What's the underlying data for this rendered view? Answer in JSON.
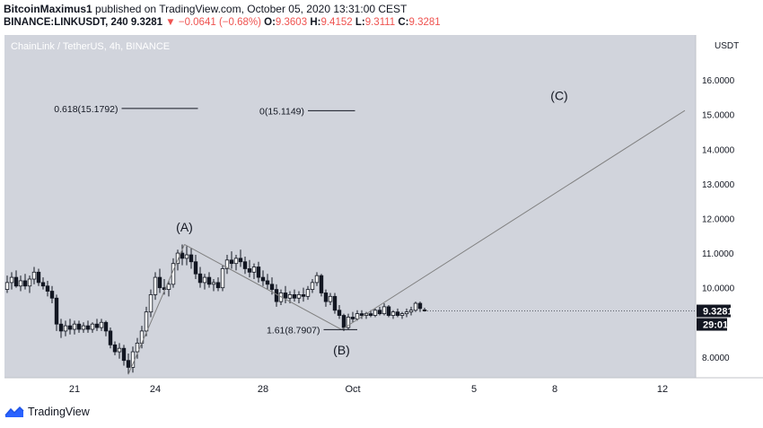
{
  "header": {
    "author": "BitcoinMaximus1",
    "published_text": "published on TradingView.com, October 05, 2020 13:31:00 CEST",
    "symbol": "BINANCE:LINKUSDT, 240",
    "last": "9.3281",
    "change": "−0.0641 (−0.68%)",
    "open_label": "O:",
    "open": "9.3603",
    "high_label": "H:",
    "high": "9.4152",
    "low_label": "L:",
    "low": "9.3111",
    "close_label": "C:",
    "close": "9.3281"
  },
  "chart_data": {
    "type": "candlestick",
    "title": "ChainLink / TetherUS, 4h, BINANCE",
    "y_unit": "USDT",
    "ylim": [
      7.4,
      17.3
    ],
    "y_ticks": [
      "16.0000",
      "15.0000",
      "14.0000",
      "13.0000",
      "12.0000",
      "11.0000",
      "10.0000",
      "8.0000"
    ],
    "y_tick_values": [
      16,
      15,
      14,
      13,
      12,
      11,
      10,
      8
    ],
    "x_ticks": [
      {
        "label": "21",
        "bar": 15
      },
      {
        "label": "24",
        "bar": 33
      },
      {
        "label": "28",
        "bar": 57
      },
      {
        "label": "Oct",
        "bar": 77
      },
      {
        "label": "5",
        "bar": 104
      },
      {
        "label": "8",
        "bar": 122
      },
      {
        "label": "12",
        "bar": 146
      }
    ],
    "current_price_label": "9.3281",
    "countdown_label": "29:01",
    "colors": {
      "background": "#d1d4dc",
      "up": "#ffffff",
      "down": "#131722",
      "line": "#808080",
      "price_tag": "#131722"
    },
    "candles": [
      {
        "o": 9.95,
        "h": 10.35,
        "l": 9.85,
        "c": 10.15
      },
      {
        "o": 10.15,
        "h": 10.45,
        "l": 9.95,
        "c": 10.3
      },
      {
        "o": 10.3,
        "h": 10.5,
        "l": 10.0,
        "c": 10.05
      },
      {
        "o": 10.05,
        "h": 10.35,
        "l": 9.9,
        "c": 10.2
      },
      {
        "o": 10.2,
        "h": 10.4,
        "l": 9.95,
        "c": 10.05
      },
      {
        "o": 10.05,
        "h": 10.35,
        "l": 9.85,
        "c": 10.25
      },
      {
        "o": 10.25,
        "h": 10.6,
        "l": 10.1,
        "c": 10.45
      },
      {
        "o": 10.45,
        "h": 10.55,
        "l": 10.05,
        "c": 10.15
      },
      {
        "o": 10.15,
        "h": 10.3,
        "l": 9.95,
        "c": 10.05
      },
      {
        "o": 10.05,
        "h": 10.2,
        "l": 9.75,
        "c": 9.9
      },
      {
        "o": 9.9,
        "h": 10.05,
        "l": 9.55,
        "c": 9.7
      },
      {
        "o": 9.7,
        "h": 9.8,
        "l": 8.75,
        "c": 8.95
      },
      {
        "o": 8.95,
        "h": 9.1,
        "l": 8.55,
        "c": 8.75
      },
      {
        "o": 8.75,
        "h": 9.05,
        "l": 8.6,
        "c": 8.9
      },
      {
        "o": 8.9,
        "h": 9.1,
        "l": 8.65,
        "c": 8.8
      },
      {
        "o": 8.8,
        "h": 9.05,
        "l": 8.65,
        "c": 8.95
      },
      {
        "o": 8.95,
        "h": 9.05,
        "l": 8.7,
        "c": 8.8
      },
      {
        "o": 8.8,
        "h": 9.0,
        "l": 8.7,
        "c": 8.9
      },
      {
        "o": 8.9,
        "h": 9.05,
        "l": 8.7,
        "c": 8.8
      },
      {
        "o": 8.8,
        "h": 9.0,
        "l": 8.7,
        "c": 8.95
      },
      {
        "o": 8.95,
        "h": 9.1,
        "l": 8.75,
        "c": 8.85
      },
      {
        "o": 8.85,
        "h": 9.1,
        "l": 8.75,
        "c": 9.0
      },
      {
        "o": 9.0,
        "h": 9.05,
        "l": 8.6,
        "c": 8.75
      },
      {
        "o": 8.75,
        "h": 8.85,
        "l": 8.25,
        "c": 8.35
      },
      {
        "o": 8.35,
        "h": 8.45,
        "l": 8.05,
        "c": 8.15
      },
      {
        "o": 8.15,
        "h": 8.4,
        "l": 7.95,
        "c": 8.25
      },
      {
        "o": 8.25,
        "h": 8.35,
        "l": 7.75,
        "c": 7.9
      },
      {
        "o": 7.9,
        "h": 8.1,
        "l": 7.5,
        "c": 7.7
      },
      {
        "o": 7.7,
        "h": 8.3,
        "l": 7.55,
        "c": 8.15
      },
      {
        "o": 8.15,
        "h": 8.55,
        "l": 7.95,
        "c": 8.4
      },
      {
        "o": 8.4,
        "h": 8.9,
        "l": 8.25,
        "c": 8.75
      },
      {
        "o": 8.75,
        "h": 9.45,
        "l": 8.6,
        "c": 9.3
      },
      {
        "o": 9.3,
        "h": 9.95,
        "l": 9.15,
        "c": 9.8
      },
      {
        "o": 9.8,
        "h": 10.45,
        "l": 9.65,
        "c": 10.3
      },
      {
        "o": 10.3,
        "h": 10.55,
        "l": 9.85,
        "c": 10.0
      },
      {
        "o": 10.0,
        "h": 10.25,
        "l": 9.8,
        "c": 9.95
      },
      {
        "o": 9.95,
        "h": 10.2,
        "l": 9.75,
        "c": 10.1
      },
      {
        "o": 10.1,
        "h": 10.85,
        "l": 10.0,
        "c": 10.7
      },
      {
        "o": 10.7,
        "h": 11.1,
        "l": 10.5,
        "c": 11.0
      },
      {
        "o": 11.0,
        "h": 11.25,
        "l": 10.65,
        "c": 10.85
      },
      {
        "o": 10.85,
        "h": 11.2,
        "l": 10.65,
        "c": 10.95
      },
      {
        "o": 10.95,
        "h": 11.15,
        "l": 10.55,
        "c": 10.75
      },
      {
        "o": 10.75,
        "h": 10.95,
        "l": 10.25,
        "c": 10.4
      },
      {
        "o": 10.4,
        "h": 10.6,
        "l": 10.0,
        "c": 10.15
      },
      {
        "o": 10.15,
        "h": 10.4,
        "l": 9.95,
        "c": 10.3
      },
      {
        "o": 10.3,
        "h": 10.45,
        "l": 10.0,
        "c": 10.1
      },
      {
        "o": 10.1,
        "h": 10.25,
        "l": 9.9,
        "c": 10.15
      },
      {
        "o": 10.15,
        "h": 10.3,
        "l": 9.9,
        "c": 10.0
      },
      {
        "o": 10.0,
        "h": 10.65,
        "l": 9.9,
        "c": 10.55
      },
      {
        "o": 10.55,
        "h": 10.95,
        "l": 10.4,
        "c": 10.8
      },
      {
        "o": 10.8,
        "h": 11.05,
        "l": 10.55,
        "c": 10.7
      },
      {
        "o": 10.7,
        "h": 10.95,
        "l": 10.5,
        "c": 10.85
      },
      {
        "o": 10.85,
        "h": 11.1,
        "l": 10.6,
        "c": 10.75
      },
      {
        "o": 10.75,
        "h": 10.9,
        "l": 10.4,
        "c": 10.55
      },
      {
        "o": 10.55,
        "h": 10.8,
        "l": 10.3,
        "c": 10.45
      },
      {
        "o": 10.45,
        "h": 10.7,
        "l": 10.25,
        "c": 10.6
      },
      {
        "o": 10.6,
        "h": 10.75,
        "l": 10.15,
        "c": 10.3
      },
      {
        "o": 10.3,
        "h": 10.5,
        "l": 10.05,
        "c": 10.2
      },
      {
        "o": 10.2,
        "h": 10.4,
        "l": 9.95,
        "c": 10.1
      },
      {
        "o": 10.1,
        "h": 10.3,
        "l": 9.8,
        "c": 9.95
      },
      {
        "o": 9.95,
        "h": 10.1,
        "l": 9.45,
        "c": 9.6
      },
      {
        "o": 9.6,
        "h": 9.95,
        "l": 9.5,
        "c": 9.85
      },
      {
        "o": 9.85,
        "h": 10.05,
        "l": 9.55,
        "c": 9.7
      },
      {
        "o": 9.7,
        "h": 9.9,
        "l": 9.55,
        "c": 9.8
      },
      {
        "o": 9.8,
        "h": 9.95,
        "l": 9.6,
        "c": 9.7
      },
      {
        "o": 9.7,
        "h": 9.9,
        "l": 9.55,
        "c": 9.8
      },
      {
        "o": 9.8,
        "h": 10.0,
        "l": 9.6,
        "c": 9.75
      },
      {
        "o": 9.75,
        "h": 10.05,
        "l": 9.65,
        "c": 9.95
      },
      {
        "o": 9.95,
        "h": 10.25,
        "l": 9.85,
        "c": 10.15
      },
      {
        "o": 10.15,
        "h": 10.45,
        "l": 10.05,
        "c": 10.35
      },
      {
        "o": 10.35,
        "h": 10.4,
        "l": 9.75,
        "c": 9.85
      },
      {
        "o": 9.85,
        "h": 9.95,
        "l": 9.45,
        "c": 9.6
      },
      {
        "o": 9.6,
        "h": 9.85,
        "l": 9.5,
        "c": 9.75
      },
      {
        "o": 9.75,
        "h": 9.85,
        "l": 9.25,
        "c": 9.35
      },
      {
        "o": 9.35,
        "h": 9.5,
        "l": 9.1,
        "c": 9.2
      },
      {
        "o": 9.2,
        "h": 9.25,
        "l": 8.75,
        "c": 8.85
      },
      {
        "o": 8.85,
        "h": 9.25,
        "l": 8.8,
        "c": 9.15
      },
      {
        "o": 9.15,
        "h": 9.3,
        "l": 9.0,
        "c": 9.1
      },
      {
        "o": 9.1,
        "h": 9.35,
        "l": 9.05,
        "c": 9.25
      },
      {
        "o": 9.25,
        "h": 9.35,
        "l": 9.1,
        "c": 9.2
      },
      {
        "o": 9.2,
        "h": 9.3,
        "l": 9.1,
        "c": 9.25
      },
      {
        "o": 9.25,
        "h": 9.35,
        "l": 9.15,
        "c": 9.2
      },
      {
        "o": 9.2,
        "h": 9.4,
        "l": 9.15,
        "c": 9.35
      },
      {
        "o": 9.35,
        "h": 9.45,
        "l": 9.2,
        "c": 9.25
      },
      {
        "o": 9.25,
        "h": 9.55,
        "l": 9.2,
        "c": 9.45
      },
      {
        "o": 9.45,
        "h": 9.5,
        "l": 9.15,
        "c": 9.2
      },
      {
        "o": 9.2,
        "h": 9.35,
        "l": 9.1,
        "c": 9.3
      },
      {
        "o": 9.3,
        "h": 9.4,
        "l": 9.15,
        "c": 9.2
      },
      {
        "o": 9.2,
        "h": 9.3,
        "l": 9.1,
        "c": 9.25
      },
      {
        "o": 9.25,
        "h": 9.4,
        "l": 9.15,
        "c": 9.3
      },
      {
        "o": 9.3,
        "h": 9.45,
        "l": 9.2,
        "c": 9.35
      },
      {
        "o": 9.35,
        "h": 9.6,
        "l": 9.3,
        "c": 9.55
      },
      {
        "o": 9.55,
        "h": 9.6,
        "l": 9.3,
        "c": 9.4
      },
      {
        "o": 9.36,
        "h": 9.42,
        "l": 9.31,
        "c": 9.33
      }
    ],
    "wave_lines": [
      {
        "from": {
          "bar": 27.0,
          "price": 7.5
        },
        "to": {
          "bar": 39.5,
          "price": 11.25
        }
      },
      {
        "from": {
          "bar": 39.5,
          "price": 11.25
        },
        "to": {
          "bar": 74.5,
          "price": 8.79
        }
      },
      {
        "from": {
          "bar": 74.5,
          "price": 8.79
        },
        "to": {
          "bar": 151.0,
          "price": 15.12
        }
      }
    ],
    "annotations": [
      {
        "text": "0.618(15.1792)",
        "price": 15.1792,
        "bar_start": 25.5,
        "bar_end": 42.5,
        "label_side": "left"
      },
      {
        "text": "0(15.1149)",
        "price": 15.1149,
        "bar_start": 67.0,
        "bar_end": 77.5,
        "label_side": "left"
      },
      {
        "text": "1.61(8.7907)",
        "price": 8.7907,
        "bar_start": 70.5,
        "bar_end": 78.0,
        "label_side": "left"
      }
    ],
    "wave_labels": [
      {
        "text": "(A)",
        "bar": 39.5,
        "price": 11.75
      },
      {
        "text": "(B)",
        "bar": 74.5,
        "price": 8.2
      },
      {
        "text": "(C)",
        "bar": 123.0,
        "price": 15.55
      }
    ]
  },
  "footer": {
    "brand": "TradingView"
  }
}
